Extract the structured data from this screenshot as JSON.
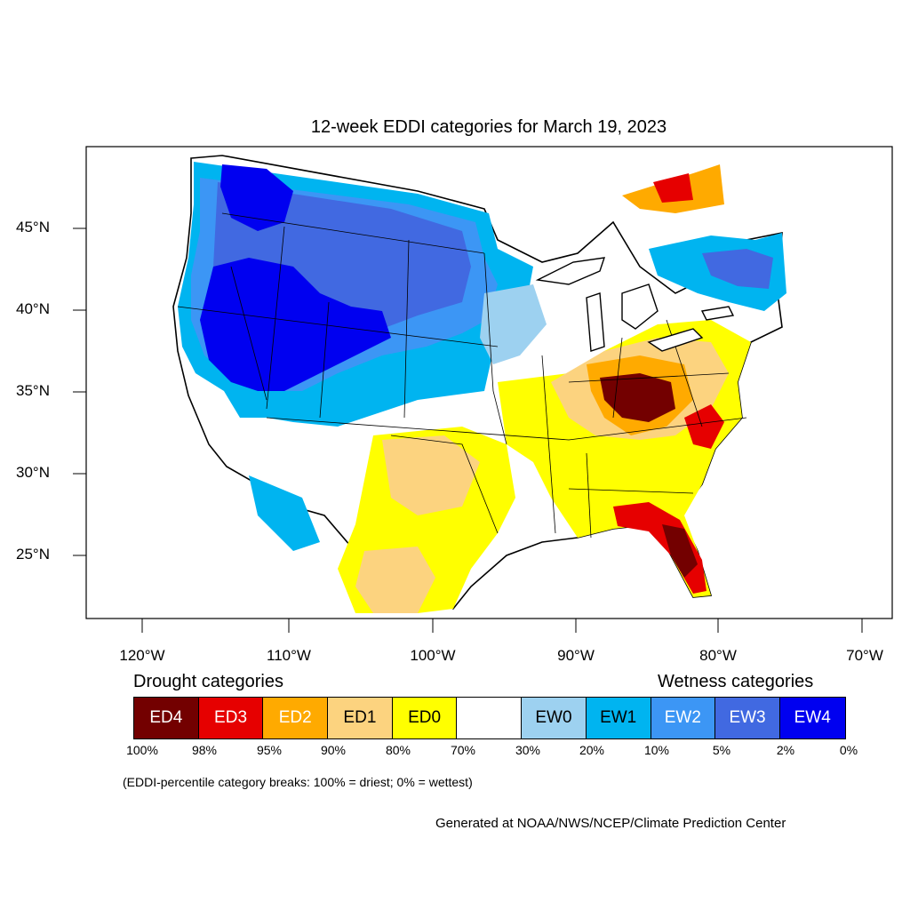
{
  "title": "12-week EDDI categories for March 19, 2023",
  "axes": {
    "lat_labels": [
      "45°N",
      "40°N",
      "35°N",
      "30°N",
      "25°N"
    ],
    "lon_labels": [
      "120°W",
      "110°W",
      "100°W",
      "90°W",
      "80°W",
      "70°W"
    ]
  },
  "legend": {
    "drought_heading": "Drought categories",
    "wetness_heading": "Wetness categories",
    "categories": [
      {
        "label": "ED4",
        "color": "#730000",
        "text_color": "#ffffff"
      },
      {
        "label": "ED3",
        "color": "#e60000",
        "text_color": "#ffffff"
      },
      {
        "label": "ED2",
        "color": "#ffaa00",
        "text_color": "#ffffff"
      },
      {
        "label": "ED1",
        "color": "#fcd37f",
        "text_color": "#000000"
      },
      {
        "label": "ED0",
        "color": "#ffff00",
        "text_color": "#000000"
      },
      {
        "label": "",
        "color": "#ffffff",
        "text_color": "#000000"
      },
      {
        "label": "EW0",
        "color": "#9dd1f0",
        "text_color": "#000000"
      },
      {
        "label": "EW1",
        "color": "#00b4f0",
        "text_color": "#000000"
      },
      {
        "label": "EW2",
        "color": "#3c96f5",
        "text_color": "#ffffff"
      },
      {
        "label": "EW3",
        "color": "#4169e1",
        "text_color": "#ffffff"
      },
      {
        "label": "EW4",
        "color": "#0000f0",
        "text_color": "#ffffff"
      }
    ],
    "percent_breaks": [
      "100%",
      "98%",
      "95%",
      "90%",
      "80%",
      "70%",
      "30%",
      "20%",
      "10%",
      "5%",
      "2%",
      "0%"
    ]
  },
  "note": "(EDDI-percentile category breaks: 100% = driest; 0% = wettest)",
  "credit": "Generated at NOAA/NWS/NCEP/Climate Prediction Center"
}
